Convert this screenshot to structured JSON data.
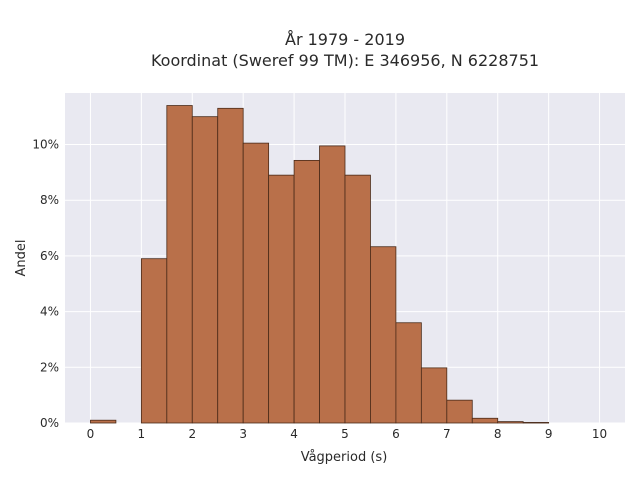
{
  "chart_data": {
    "type": "bar",
    "title_line1": "År 1979 - 2019",
    "title_line2": "Koordinat (Sweref 99 TM): E 346956, N 6228751",
    "xlabel": "Vågperiod (s)",
    "ylabel": "Andel",
    "xlim": [
      -0.5,
      10.5
    ],
    "ylim": [
      0,
      0.1185
    ],
    "x_ticks": [
      0,
      1,
      2,
      3,
      4,
      5,
      6,
      7,
      8,
      9,
      10
    ],
    "y_ticks": [
      0,
      0.02,
      0.04,
      0.06,
      0.08,
      0.1
    ],
    "y_tick_labels": [
      "0%",
      "2%",
      "4%",
      "6%",
      "8%",
      "10%"
    ],
    "bin_width": 0.5,
    "bins": [
      {
        "start": 0.0,
        "value": 0.001
      },
      {
        "start": 0.5,
        "value": 0.0
      },
      {
        "start": 1.0,
        "value": 0.059
      },
      {
        "start": 1.5,
        "value": 0.114
      },
      {
        "start": 2.0,
        "value": 0.11
      },
      {
        "start": 2.5,
        "value": 0.113
      },
      {
        "start": 3.0,
        "value": 0.1005
      },
      {
        "start": 3.5,
        "value": 0.089
      },
      {
        "start": 4.0,
        "value": 0.0943
      },
      {
        "start": 4.5,
        "value": 0.0995
      },
      {
        "start": 5.0,
        "value": 0.089
      },
      {
        "start": 5.5,
        "value": 0.0633
      },
      {
        "start": 6.0,
        "value": 0.036
      },
      {
        "start": 6.5,
        "value": 0.0198
      },
      {
        "start": 7.0,
        "value": 0.0082
      },
      {
        "start": 7.5,
        "value": 0.0017
      },
      {
        "start": 8.0,
        "value": 0.0005
      },
      {
        "start": 8.5,
        "value": 0.0002
      },
      {
        "start": 9.0,
        "value": 0.0
      },
      {
        "start": 9.5,
        "value": 0.0
      }
    ],
    "colors": {
      "bar_fill": "#b9704a",
      "bar_edge": "#4a2a18",
      "plot_background": "#e9e9f1",
      "grid": "#ffffff"
    }
  }
}
